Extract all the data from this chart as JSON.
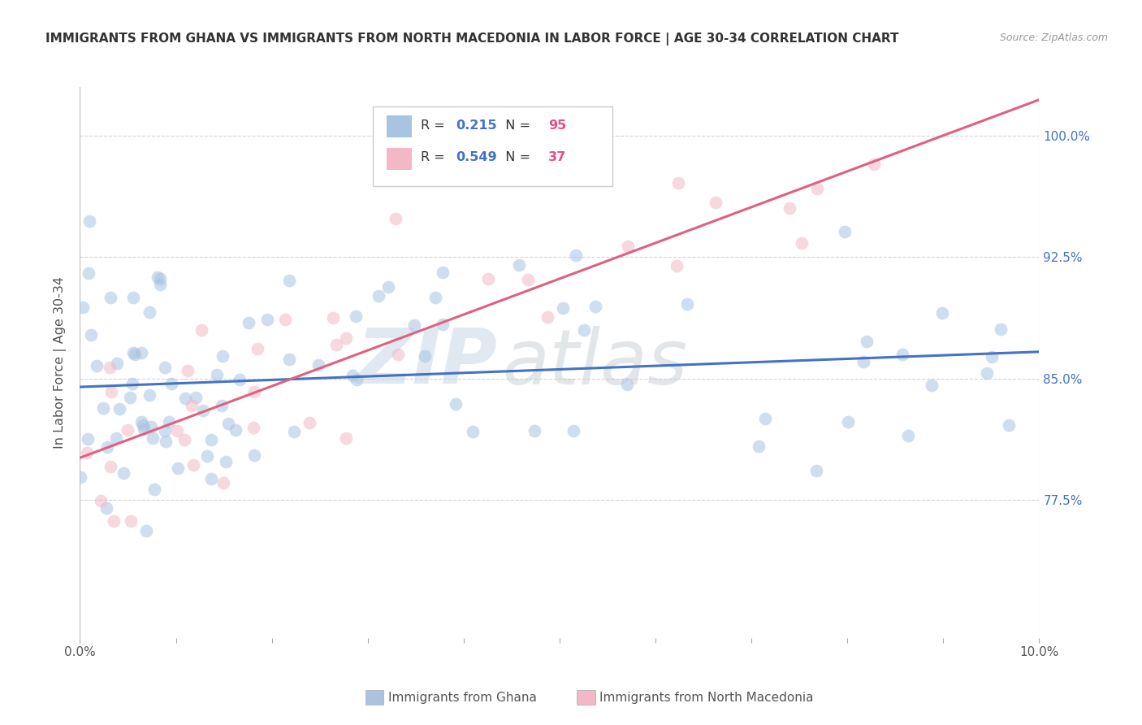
{
  "title": "IMMIGRANTS FROM GHANA VS IMMIGRANTS FROM NORTH MACEDONIA IN LABOR FORCE | AGE 30-34 CORRELATION CHART",
  "source": "Source: ZipAtlas.com",
  "ylabel_label": "In Labor Force | Age 30-34",
  "legend_ghana": {
    "color": "#a8c4e0",
    "R": 0.215,
    "N": 95,
    "label": "Immigrants from Ghana"
  },
  "legend_macedonia": {
    "color": "#f2b8c6",
    "R": 0.549,
    "N": 37,
    "label": "Immigrants from North Macedonia"
  },
  "watermark_zip": "ZIP",
  "watermark_atlas": "atlas",
  "ghana_color": "#a8c4e0",
  "macedonia_color": "#f2b8c6",
  "ghana_line_color": "#4472c4",
  "macedonia_line_color": "#e06080",
  "background_color": "#ffffff",
  "grid_color": "#d0d0d0",
  "title_color": "#333333",
  "axis_color": "#555555",
  "tick_label_color": "#4472c4",
  "R_color": "#4472c4",
  "N_color": "#e84d8a",
  "xlim": [
    0.0,
    0.1
  ],
  "ylim": [
    0.69,
    1.03
  ],
  "yticks": [
    0.775,
    0.85,
    0.925,
    1.0
  ],
  "ytick_labels": [
    "77.5%",
    "85.0%",
    "92.5%",
    "100.0%"
  ],
  "xticks": [
    0.0,
    0.01,
    0.02,
    0.03,
    0.04,
    0.05,
    0.06,
    0.07,
    0.08,
    0.09,
    0.1
  ],
  "xtick_labels": [
    "0.0%",
    "",
    "",
    "",
    "",
    "",
    "",
    "",
    "",
    "",
    "10.0%"
  ]
}
